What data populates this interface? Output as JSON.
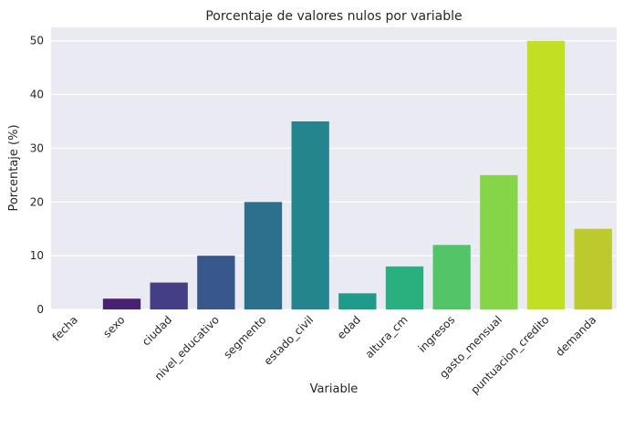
{
  "chart_data": {
    "type": "bar",
    "title": "Porcentaje de valores nulos por variable",
    "xlabel": "Variable",
    "ylabel": "Porcentaje (%)",
    "ylim": [
      0,
      52.5
    ],
    "yticks": [
      0,
      10,
      20,
      30,
      40,
      50
    ],
    "grid": true,
    "categories": [
      "fecha",
      "sexo",
      "ciudad",
      "nivel_educativo",
      "segmento",
      "estado_civil",
      "edad",
      "altura_cm",
      "ingresos",
      "gasto_mensual",
      "puntuacion_credito",
      "demanda"
    ],
    "values": [
      0,
      2,
      5,
      10,
      20,
      35,
      3,
      8,
      12,
      25,
      50,
      15
    ],
    "colors": [
      "#440154",
      "#482173",
      "#433e85",
      "#38588c",
      "#2d708e",
      "#25858e",
      "#1e9b8a",
      "#2ab07f",
      "#52c569",
      "#86d549",
      "#c2df23",
      "#bcca2c"
    ],
    "background": "#eaeaf2"
  }
}
